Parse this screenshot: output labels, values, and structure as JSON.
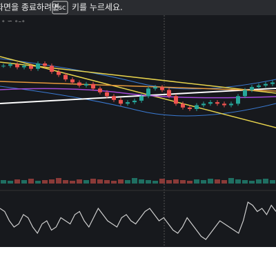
{
  "overlay": {
    "before": "화면을 종료하려면",
    "key": "Esc",
    "after": "키를 누르세요."
  },
  "chart": {
    "price": [
      100,
      102,
      98,
      100,
      96,
      103,
      100,
      92,
      88,
      82,
      78,
      74,
      76,
      70,
      65,
      60,
      55,
      50,
      52,
      54,
      60,
      70,
      72,
      68,
      60,
      50,
      45,
      43,
      48,
      50,
      52,
      50,
      48,
      50,
      60,
      68,
      72,
      74,
      76,
      78
    ],
    "volume": [
      5,
      4,
      6,
      5,
      7,
      4,
      5,
      6,
      8,
      5,
      4,
      6,
      5,
      7,
      6,
      5,
      4,
      6,
      5,
      8,
      6,
      5,
      4,
      7,
      5,
      6,
      5,
      4,
      6,
      5,
      7,
      6,
      5,
      8,
      6,
      5,
      4,
      6,
      7,
      5
    ],
    "oscillator": [
      60,
      55,
      40,
      30,
      35,
      50,
      45,
      30,
      20,
      35,
      40,
      25,
      30,
      45,
      40,
      35,
      50,
      55,
      40,
      30,
      45,
      60,
      50,
      40,
      35,
      30,
      45,
      50,
      40,
      35,
      45,
      55,
      60,
      50,
      40,
      45,
      35,
      25,
      20,
      30,
      45,
      35,
      25,
      15,
      10,
      20,
      30,
      40,
      35,
      30,
      25,
      20,
      40,
      70,
      65,
      55,
      60,
      50,
      65,
      55
    ]
  }
}
